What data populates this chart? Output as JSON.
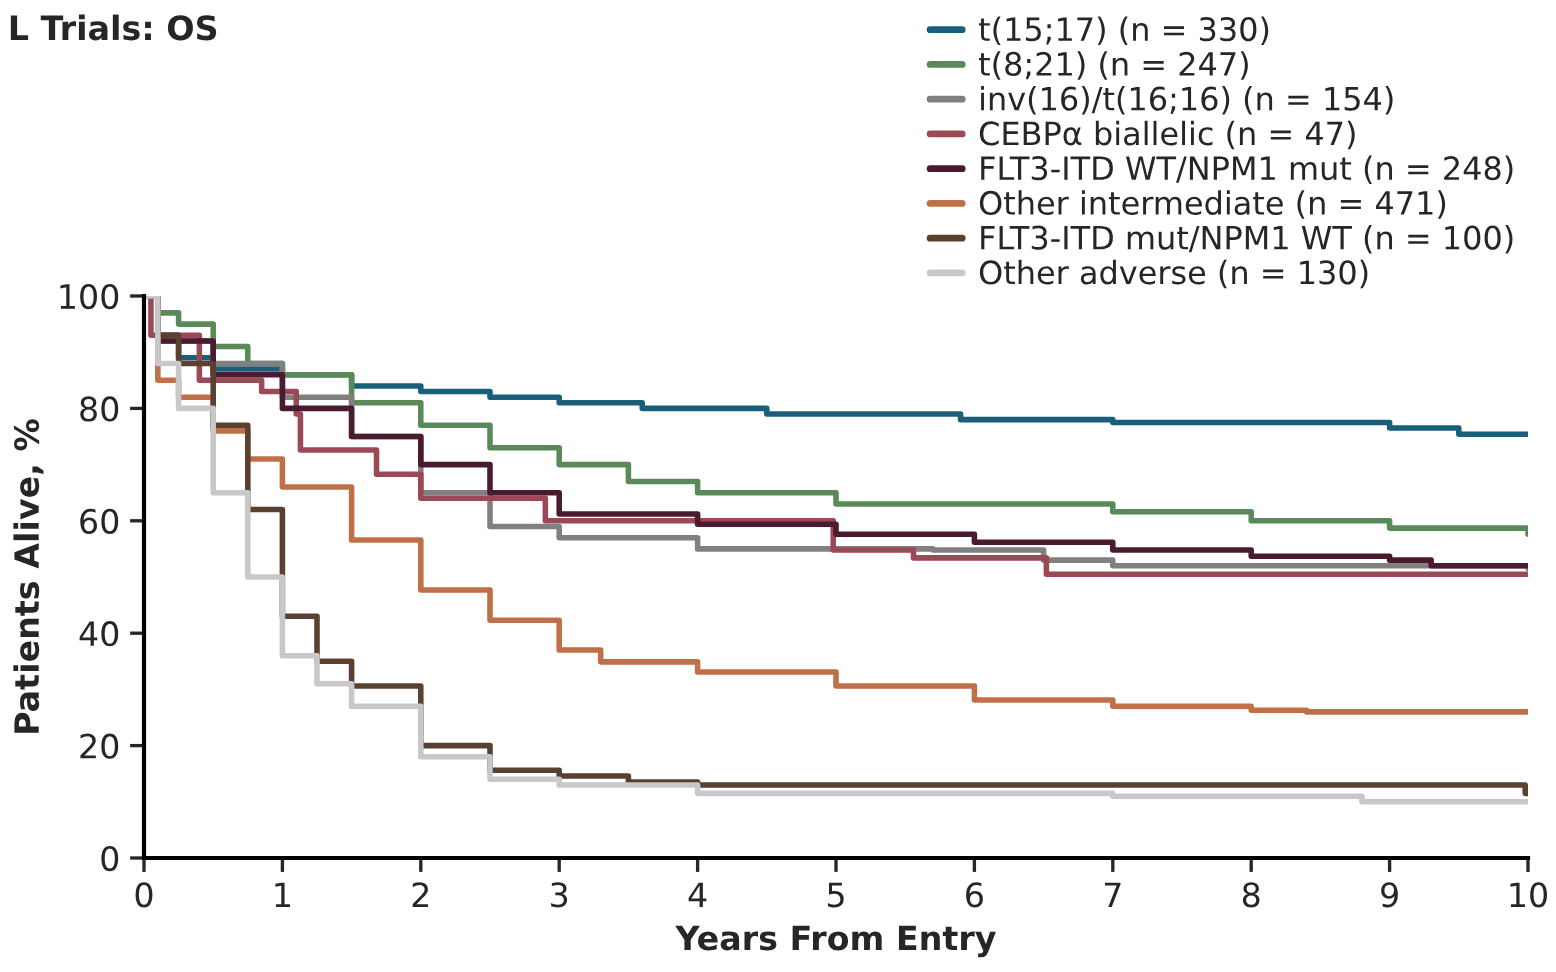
{
  "chart_data": {
    "type": "step",
    "title": "L Trials: OS",
    "xlabel": "Years From Entry",
    "ylabel": "Patients Alive, %",
    "xlim": [
      0,
      10
    ],
    "ylim": [
      0,
      100
    ],
    "xticks": [
      0,
      1,
      2,
      3,
      4,
      5,
      6,
      7,
      8,
      9,
      10
    ],
    "yticks": [
      0,
      20,
      40,
      60,
      80,
      100
    ],
    "grid": false,
    "legend": "top right",
    "marker": "none",
    "line_style": "solid",
    "series": [
      {
        "name": "t(15;17) (n = 330)",
        "color": "#1a5f7a",
        "x": [
          0,
          0.1,
          0.25,
          0.5,
          1,
          1.5,
          2,
          2.5,
          3,
          3.6,
          4.5,
          5.9,
          7,
          8,
          9,
          9.5,
          10
        ],
        "values": [
          100,
          93,
          89,
          87,
          86,
          84,
          83,
          82,
          81,
          80,
          79,
          78,
          77.5,
          77.5,
          76.5,
          75.4,
          75.4
        ]
      },
      {
        "name": "t(8;21) (n = 247)",
        "color": "#5a8a5a",
        "x": [
          0,
          0.1,
          0.25,
          0.5,
          0.75,
          1,
          1.5,
          2,
          2.5,
          3,
          3.5,
          4,
          5,
          6,
          7,
          8,
          9,
          10
        ],
        "values": [
          100,
          97,
          95,
          91,
          88,
          86,
          81,
          77,
          73,
          70,
          67,
          65,
          63,
          63,
          61.6,
          60,
          58.7,
          57.6
        ]
      },
      {
        "name": "inv(16)/t(16;16) (n = 154)",
        "color": "#808080",
        "x": [
          0,
          0.1,
          0.5,
          1,
          1.5,
          2,
          2.5,
          3,
          4,
          5.7,
          6.5,
          7,
          8,
          9,
          10
        ],
        "values": [
          100,
          92,
          88,
          82,
          75,
          65,
          59,
          57,
          55,
          54.8,
          53,
          52,
          52,
          52,
          51.5
        ]
      },
      {
        "name": "CEBPα biallelic (n = 47)",
        "color": "#9a4a55",
        "x": [
          0,
          0.05,
          0.4,
          0.85,
          1.1,
          1.13,
          1.68,
          2.0,
          2.9,
          4.98,
          5.56,
          6.52,
          10
        ],
        "values": [
          100,
          93,
          85,
          83,
          79,
          72.6,
          68.3,
          64,
          60,
          54.8,
          53.4,
          50.5,
          50.5
        ]
      },
      {
        "name": "FLT3-ITD WT/NPM1 mut (n = 248)",
        "color": "#4a1a30",
        "x": [
          0,
          0.1,
          0.5,
          1,
          1.5,
          2,
          2.5,
          3,
          4,
          5,
          6,
          7,
          8,
          9,
          9.3,
          10
        ],
        "values": [
          100,
          92,
          86,
          80,
          75,
          70,
          65,
          61.2,
          59.4,
          57.6,
          56.2,
          54.8,
          53.7,
          53,
          52,
          52
        ]
      },
      {
        "name": "Other intermediate (n = 471)",
        "color": "#c07048",
        "x": [
          0,
          0.1,
          0.25,
          0.5,
          0.75,
          1,
          1.5,
          2,
          2.5,
          3,
          3.3,
          4,
          5,
          6,
          7,
          8,
          8.4,
          10
        ],
        "values": [
          100,
          85,
          82,
          76,
          71,
          66,
          56.6,
          47.7,
          42.3,
          37,
          34.9,
          33.1,
          30.6,
          28.1,
          27,
          26.3,
          26,
          26
        ]
      },
      {
        "name": "FLT3-ITD mut/NPM1 WT (n = 100)",
        "color": "#5a4030",
        "x": [
          0,
          0.1,
          0.25,
          0.5,
          0.75,
          1,
          1.25,
          1.5,
          2,
          2.5,
          3,
          3.5,
          4,
          9.98,
          10
        ],
        "values": [
          100,
          93,
          88,
          77,
          62,
          43,
          35,
          30.6,
          20,
          15.6,
          14.6,
          13.5,
          13,
          11.5,
          11.5
        ]
      },
      {
        "name": "Other adverse (n = 130)",
        "color": "#c8c8c8",
        "x": [
          0,
          0.1,
          0.25,
          0.5,
          0.75,
          1,
          1.25,
          1.5,
          2,
          2.5,
          3,
          4,
          7,
          8.8,
          10
        ],
        "values": [
          100,
          88,
          80,
          65,
          50,
          36,
          31,
          27,
          18,
          14,
          13,
          11.5,
          11,
          10,
          10
        ]
      }
    ]
  }
}
